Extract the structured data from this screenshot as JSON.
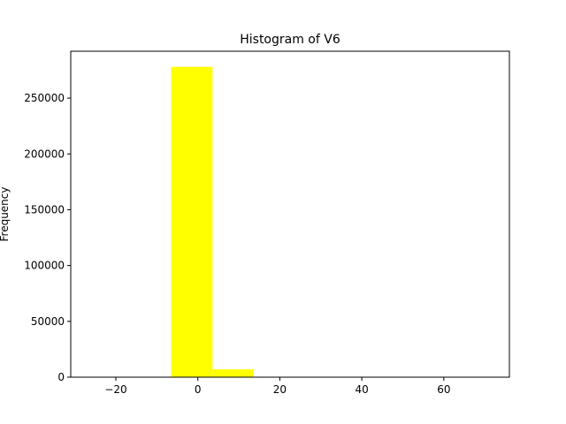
{
  "chart_data": {
    "type": "bar",
    "title": "Histogram of V6",
    "xlabel": "",
    "ylabel": "Frequency",
    "xlim": [
      -31.0,
      76.0
    ],
    "ylim": [
      0,
      292000
    ],
    "bar_color": "#ffff00",
    "bins": [
      {
        "x0": -6.5,
        "x1": 3.6,
        "count": 278000
      },
      {
        "x0": 3.6,
        "x1": 13.6,
        "count": 7000
      },
      {
        "x0": 13.6,
        "x1": 23.7,
        "count": 200
      },
      {
        "x0": 23.7,
        "x1": 33.7,
        "count": 30
      },
      {
        "x0": 33.7,
        "x1": 43.8,
        "count": 10
      },
      {
        "x0": 43.8,
        "x1": 53.8,
        "count": 3
      },
      {
        "x0": 53.8,
        "x1": 63.9,
        "count": 2
      },
      {
        "x0": 63.9,
        "x1": 73.9,
        "count": 1
      }
    ],
    "xticks": [
      -20,
      0,
      20,
      40,
      60
    ],
    "xtick_labels": [
      "−20",
      "0",
      "20",
      "40",
      "60"
    ],
    "yticks": [
      0,
      50000,
      100000,
      150000,
      200000,
      250000
    ],
    "ytick_labels": [
      "0",
      "50000",
      "100000",
      "150000",
      "200000",
      "250000"
    ],
    "grid": false,
    "legend": "none"
  }
}
